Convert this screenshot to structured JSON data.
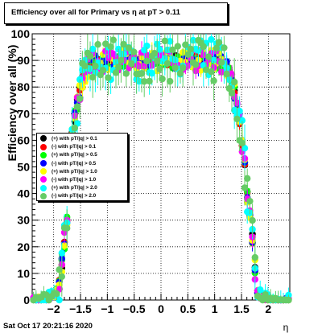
{
  "title": "Efficiency over all for Primary vs  η at pT > 0.11",
  "date": "Sat Oct 17 20:21:16 2020",
  "chart_data": {
    "type": "scatter",
    "title": "Efficiency over all for Primary vs  η at pT > 0.11",
    "xlabel": "η",
    "ylabel": "Efficiency over all (%)",
    "xlim": [
      -2.4,
      2.4
    ],
    "ylim": [
      0,
      100
    ],
    "x_ticks": [
      -2,
      -1.5,
      -1,
      -0.5,
      0,
      0.5,
      1,
      1.5,
      2
    ],
    "x_tick_labels": [
      "−2",
      "−1.5",
      "−1",
      "−0.5",
      "0",
      "0.5",
      "1",
      "1.5",
      "2"
    ],
    "y_ticks": [
      0,
      10,
      20,
      30,
      40,
      50,
      60,
      70,
      80,
      90,
      100
    ],
    "y_tick_labels": [
      "0",
      "10",
      "20",
      "30",
      "40",
      "50",
      "60",
      "70",
      "80",
      "90",
      "100"
    ],
    "grid": true,
    "legend_position": "left",
    "series": [
      {
        "name": "(+) with pT/|q| > 0.1",
        "color": "#000000",
        "noise": 2,
        "err": 2,
        "seed": 11
      },
      {
        "name": "(-) with pT/|q| > 0.1",
        "color": "#ff0000",
        "noise": 2,
        "err": 2,
        "seed": 23
      },
      {
        "name": "(+) with pT/|q| > 0.5",
        "color": "#00ff00",
        "noise": 3,
        "err": 2.5,
        "seed": 37
      },
      {
        "name": "(-) with pT/|q| > 0.5",
        "color": "#0000ff",
        "noise": 3,
        "err": 2.5,
        "seed": 41
      },
      {
        "name": "(+) with pT/|q| > 1.0",
        "color": "#ffff00",
        "noise": 4,
        "err": 3,
        "seed": 53
      },
      {
        "name": "(-) with pT/|q| > 1.0",
        "color": "#ff00ff",
        "noise": 4,
        "err": 3,
        "seed": 67
      },
      {
        "name": "(+) with pT/|q| > 2.0",
        "color": "#00ffff",
        "noise": 8,
        "err": 6,
        "seed": 79
      },
      {
        "name": "(-) with pT/|q| > 2.0",
        "color": "#66cc66",
        "noise": 8,
        "err": 6,
        "seed": 97
      }
    ],
    "profile": {
      "plateau": 90,
      "edges": [
        [
          -2.3,
          0
        ],
        [
          -2.1,
          0.5
        ],
        [
          -2.0,
          2
        ],
        [
          -1.9,
          5
        ],
        [
          -1.8,
          22
        ],
        [
          -1.75,
          30
        ],
        [
          -1.7,
          55
        ],
        [
          -1.6,
          70
        ],
        [
          -1.5,
          80
        ],
        [
          -1.4,
          86
        ],
        [
          -1.3,
          89
        ],
        [
          -1.0,
          90
        ],
        [
          1.0,
          90
        ],
        [
          1.2,
          88
        ],
        [
          1.3,
          84
        ],
        [
          1.4,
          75
        ],
        [
          1.5,
          62
        ],
        [
          1.6,
          42
        ],
        [
          1.7,
          24
        ],
        [
          1.75,
          12
        ],
        [
          1.8,
          3
        ],
        [
          1.9,
          0.5
        ],
        [
          2.0,
          0
        ],
        [
          2.3,
          0
        ]
      ]
    }
  }
}
